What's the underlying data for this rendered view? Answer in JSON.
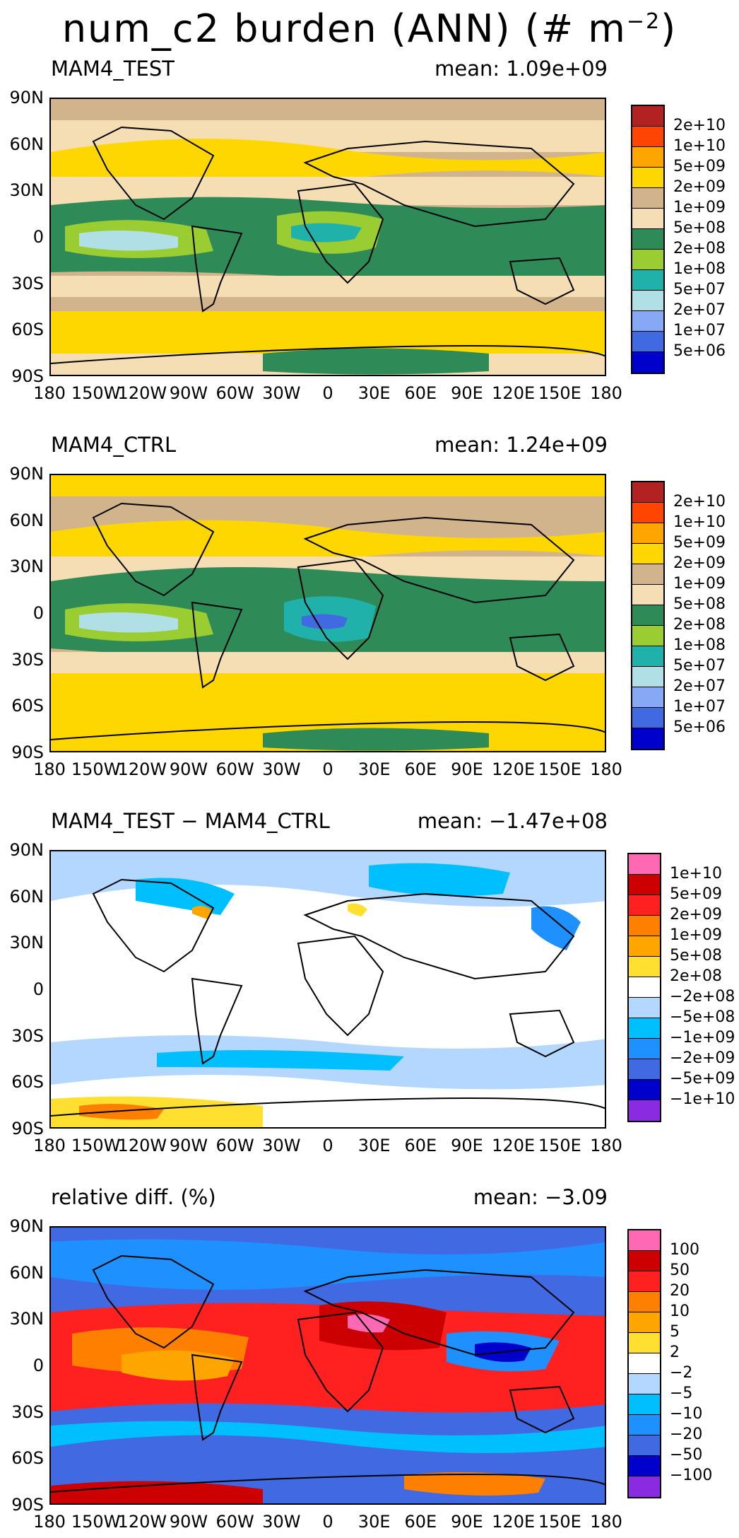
{
  "title": {
    "prefix": "num_c2 burden (ANN) (# m",
    "exponent": "−2",
    "suffix": ")"
  },
  "lat_labels": [
    "90N",
    "60N",
    "30N",
    "0",
    "30S",
    "60S",
    "90S"
  ],
  "lon_labels": [
    "180",
    "150W",
    "120W",
    "90W",
    "60W",
    "30W",
    "0",
    "30E",
    "60E",
    "90E",
    "120E",
    "150E",
    "180"
  ],
  "panels": [
    {
      "name": "MAM4_TEST",
      "mean_text": "mean: 1.09e+09",
      "colorbar": {
        "colors": [
          "#b22222",
          "#ff4500",
          "#ffa500",
          "#ffd700",
          "#d2b48c",
          "#f5deb3",
          "#2e8b57",
          "#9acd32",
          "#20b2aa",
          "#b0e0e6",
          "#87a8f5",
          "#4169e1",
          "#0000cd"
        ],
        "labels": [
          "2e+10",
          "1e+10",
          "5e+09",
          "2e+09",
          "1e+09",
          "5e+08",
          "2e+08",
          "1e+08",
          "5e+07",
          "2e+07",
          "1e+07",
          "5e+06"
        ]
      }
    },
    {
      "name": "MAM4_CTRL",
      "mean_text": "mean: 1.24e+09",
      "colorbar": {
        "colors": [
          "#b22222",
          "#ff4500",
          "#ffa500",
          "#ffd700",
          "#d2b48c",
          "#f5deb3",
          "#2e8b57",
          "#9acd32",
          "#20b2aa",
          "#b0e0e6",
          "#87a8f5",
          "#4169e1",
          "#0000cd"
        ],
        "labels": [
          "2e+10",
          "1e+10",
          "5e+09",
          "2e+09",
          "1e+09",
          "5e+08",
          "2e+08",
          "1e+08",
          "5e+07",
          "2e+07",
          "1e+07",
          "5e+06"
        ]
      }
    },
    {
      "name": "MAM4_TEST − MAM4_CTRL",
      "mean_text": "mean: −1.47e+08",
      "colorbar": {
        "colors": [
          "#ff69b4",
          "#cc0000",
          "#ff2020",
          "#ff7f00",
          "#ffa500",
          "#ffe030",
          "#ffffff",
          "#b4d7ff",
          "#00bfff",
          "#1e90ff",
          "#4169e1",
          "#0000cd",
          "#8a2be2"
        ],
        "labels": [
          "1e+10",
          "5e+09",
          "2e+09",
          "1e+09",
          "5e+08",
          "2e+08",
          "−2e+08",
          "−5e+08",
          "−1e+09",
          "−2e+09",
          "−5e+09",
          "−1e+10"
        ]
      }
    },
    {
      "name": "relative diff. (%)",
      "mean_text": "mean: −3.09",
      "colorbar": {
        "colors": [
          "#ff69b4",
          "#cc0000",
          "#ff2020",
          "#ff7f00",
          "#ffa500",
          "#ffe030",
          "#ffffff",
          "#b4d7ff",
          "#00bfff",
          "#1e90ff",
          "#4169e1",
          "#0000cd",
          "#8a2be2"
        ],
        "labels": [
          "100",
          "50",
          "20",
          "10",
          "5",
          "2",
          "−2",
          "−5",
          "−10",
          "−20",
          "−50",
          "−100"
        ]
      }
    }
  ]
}
